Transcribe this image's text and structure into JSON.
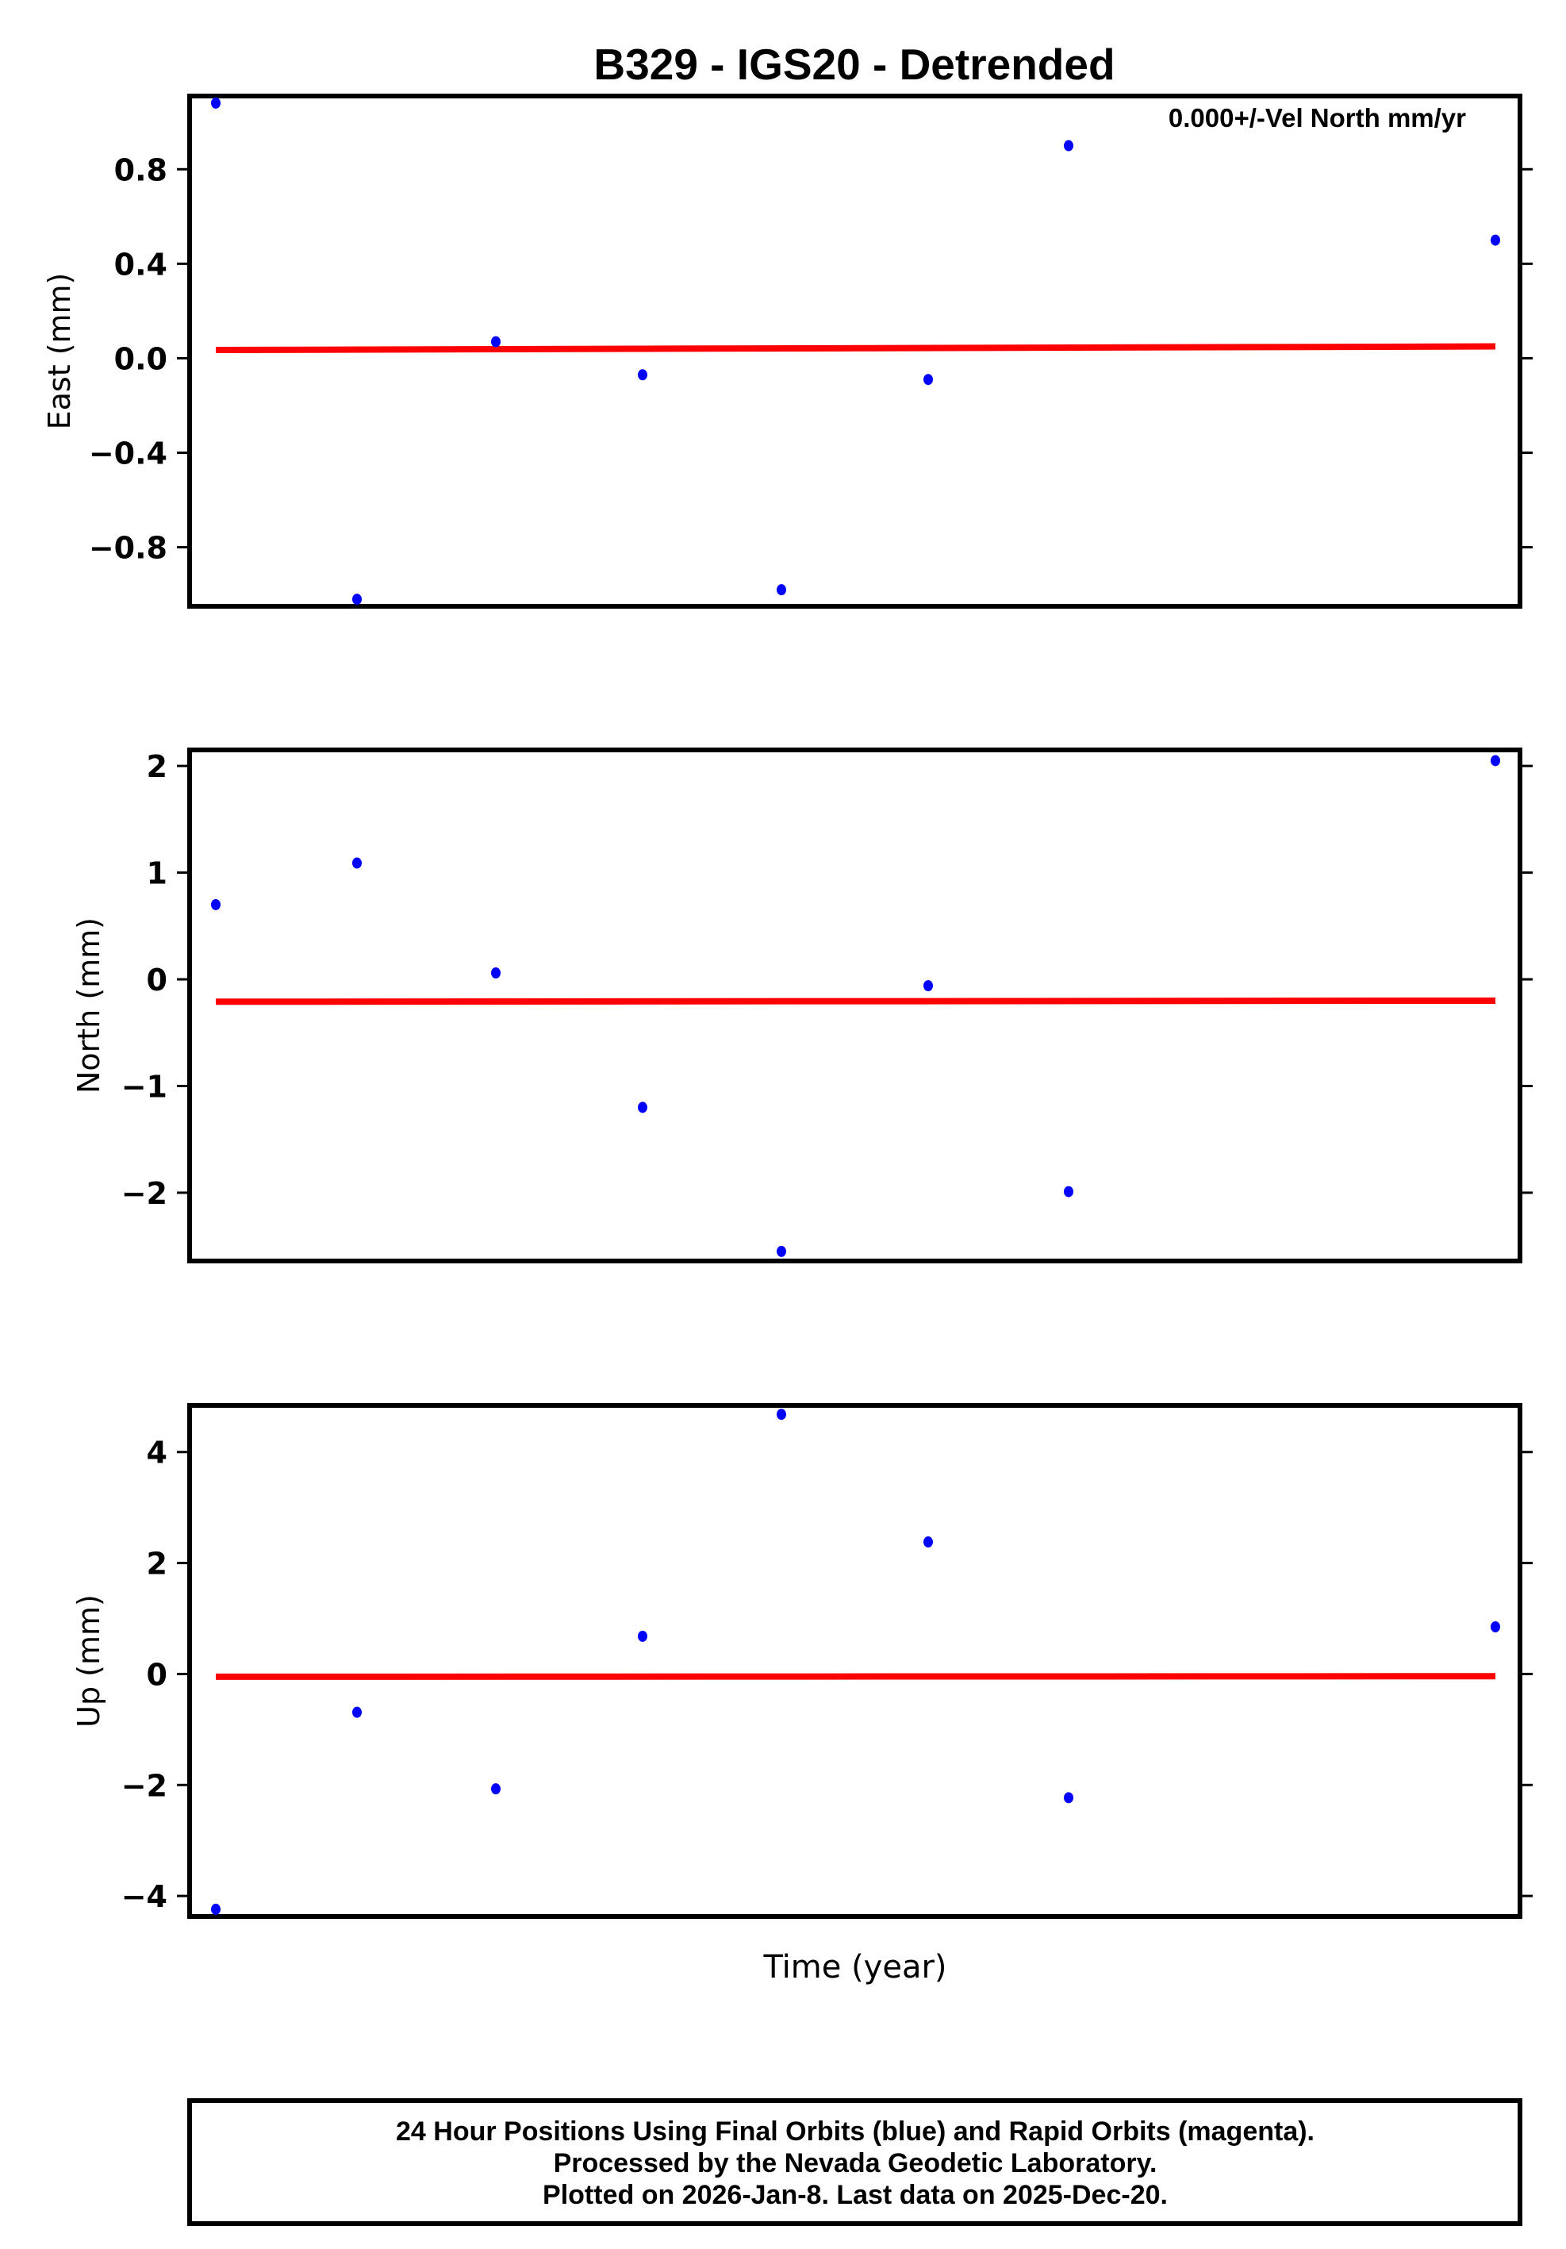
{
  "chart_data": {
    "type": "scatter",
    "title": "B329 - IGS20 - Detrended",
    "xlabel": "Time (year)",
    "annotation": "0.000+/-Vel North mm/yr",
    "x_index": [
      1,
      2,
      3,
      4,
      5,
      6,
      7,
      10
    ],
    "panels": [
      {
        "name": "East",
        "ylabel": "East (mm)",
        "yticks": [
          0.8,
          0.4,
          0.0,
          -0.4,
          -0.8
        ],
        "ytick_labels": [
          "0.8",
          "0.4",
          "0.0",
          "−0.4",
          "−0.8"
        ],
        "ylim": [
          -1.05,
          1.11
        ],
        "values": [
          1.08,
          -1.02,
          0.07,
          -0.07,
          -0.98,
          -0.09,
          0.9,
          0.5
        ],
        "trend": [
          0.035,
          0.05
        ]
      },
      {
        "name": "North",
        "ylabel": "North (mm)",
        "yticks": [
          2,
          1,
          0,
          -1,
          -2
        ],
        "ytick_labels": [
          "2",
          "1",
          "0",
          "−1",
          "−2"
        ],
        "ylim": [
          -2.64,
          2.15
        ],
        "values": [
          0.7,
          1.09,
          0.06,
          -1.2,
          -2.55,
          -0.06,
          -1.99,
          2.05
        ],
        "trend": [
          -0.21,
          -0.2
        ]
      },
      {
        "name": "Up",
        "ylabel": "Up (mm)",
        "yticks": [
          4,
          2,
          0,
          -2,
          -4
        ],
        "ytick_labels": [
          "4",
          "2",
          "0",
          "−2",
          "−4"
        ],
        "ylim": [
          -4.37,
          4.84
        ],
        "values": [
          -4.24,
          -0.69,
          -2.07,
          0.68,
          4.68,
          2.38,
          -2.23,
          0.85
        ],
        "trend": [
          -0.05,
          -0.04
        ]
      }
    ],
    "series": [
      {
        "name": "Final Orbits",
        "color": "#0000ff"
      },
      {
        "name": "Detrended fit",
        "color": "#ff0000"
      }
    ],
    "grid": false,
    "legend": "none"
  },
  "footer": {
    "line1": "24 Hour Positions Using Final Orbits (blue) and Rapid Orbits (magenta).",
    "line2": "Processed by the Nevada Geodetic Laboratory.",
    "line3": "Plotted on 2026-Jan-8. Last data on 2025-Dec-20."
  },
  "colors": {
    "points": "#0000ff",
    "trend": "#ff0000",
    "frame": "#000000"
  }
}
